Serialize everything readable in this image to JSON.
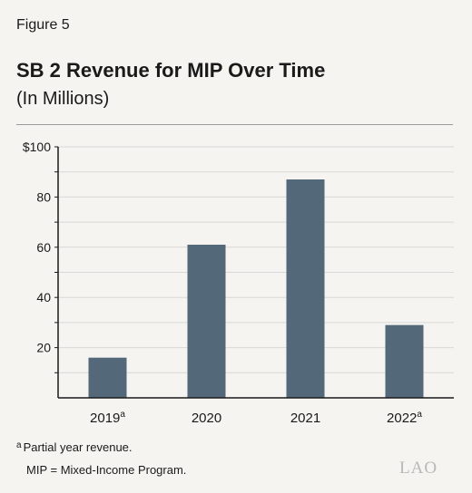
{
  "figure_label": "Figure 5",
  "title": "SB 2 Revenue for MIP Over Time",
  "subtitle": "(In Millions)",
  "footnotes": {
    "note_marker": "a",
    "note_text": "Partial year revenue.",
    "mip_definition": "MIP = Mixed-Income Program."
  },
  "logo_text": "LAO",
  "colors": {
    "bar": "#536879",
    "grid": "#d8d8d8",
    "axis": "#1a1a1a"
  },
  "chart_data": {
    "type": "bar",
    "categories": [
      "2019",
      "2020",
      "2021",
      "2022"
    ],
    "category_superscripts": [
      "a",
      "",
      "",
      "a"
    ],
    "values": [
      16,
      61,
      87,
      29
    ],
    "ylim": [
      0,
      100
    ],
    "yticks": [
      20,
      40,
      60,
      80,
      100
    ],
    "ytick_labels": [
      "20",
      "40",
      "60",
      "80",
      "$100"
    ],
    "grid": true,
    "xlabel": "",
    "ylabel": ""
  }
}
